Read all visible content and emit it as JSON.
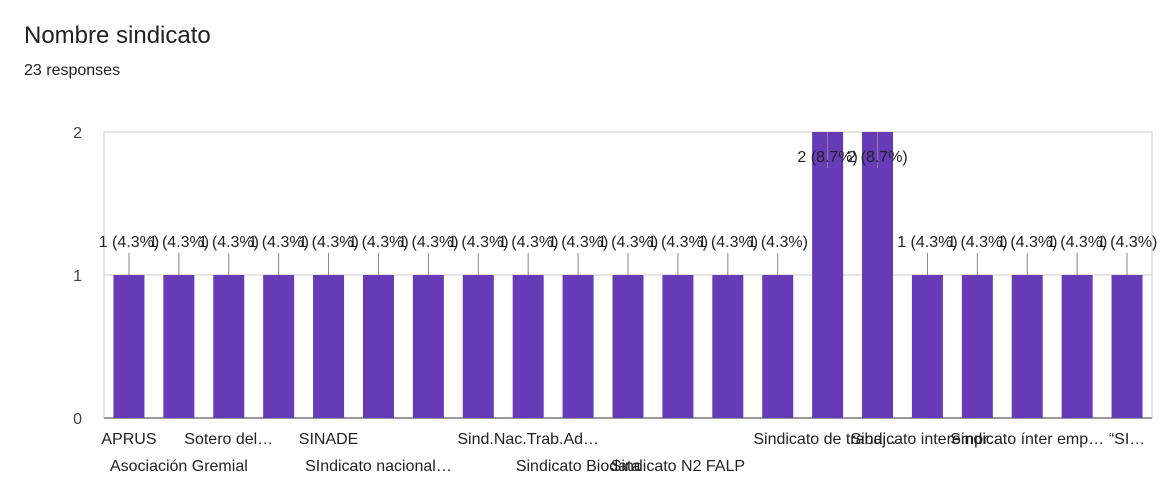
{
  "title": "Nombre sindicato",
  "subtitle": "23 responses",
  "colors": {
    "bar": "#673ab7",
    "grid": "#cccccc",
    "baseline": "#333333",
    "text": "#222222"
  },
  "chart_data": {
    "type": "bar",
    "title": "Nombre sindicato",
    "xlabel": "",
    "ylabel": "",
    "ylim": [
      0,
      2
    ],
    "yticks": [
      0,
      1,
      2
    ],
    "grid": true,
    "legend": "none",
    "categories": [
      "APRUS",
      "Asociación Gremial",
      "Sotero del…",
      "",
      "SINADE",
      "SIndicato nacional…",
      "",
      "",
      "Sind.Nac.Trab.Ad…",
      "Sindicato Biodata",
      "",
      "Sindicato N2 FALP",
      "",
      "",
      "Sindicato de trabaj…",
      "",
      "Sindicato interempr…",
      "",
      "Sindicato ínter emp…",
      "",
      "“SI…"
    ],
    "values": [
      1,
      1,
      1,
      1,
      1,
      1,
      1,
      1,
      1,
      1,
      1,
      1,
      1,
      1,
      2,
      2,
      1,
      1,
      1,
      1,
      1
    ],
    "data_labels": [
      "1 (4.3%)",
      "1 (4.3%)",
      "1 (4.3%)",
      "1 (4.3%)",
      "1 (4.3%)",
      "1 (4.3%)",
      "1 (4.3%)",
      "1 (4.3%)",
      "1 (4.3%)",
      "1 (4.3%)",
      "1 (4.3%)",
      "1 (4.3%)",
      "1 (4.3%)",
      "1 (4.3%)",
      "2 (8.7%)",
      "2 (8.7%)",
      "1 (4.3%)",
      "1 (4.3%)",
      "1 (4.3%)",
      "1 (4.3%)",
      "1 (4.3%)"
    ]
  }
}
